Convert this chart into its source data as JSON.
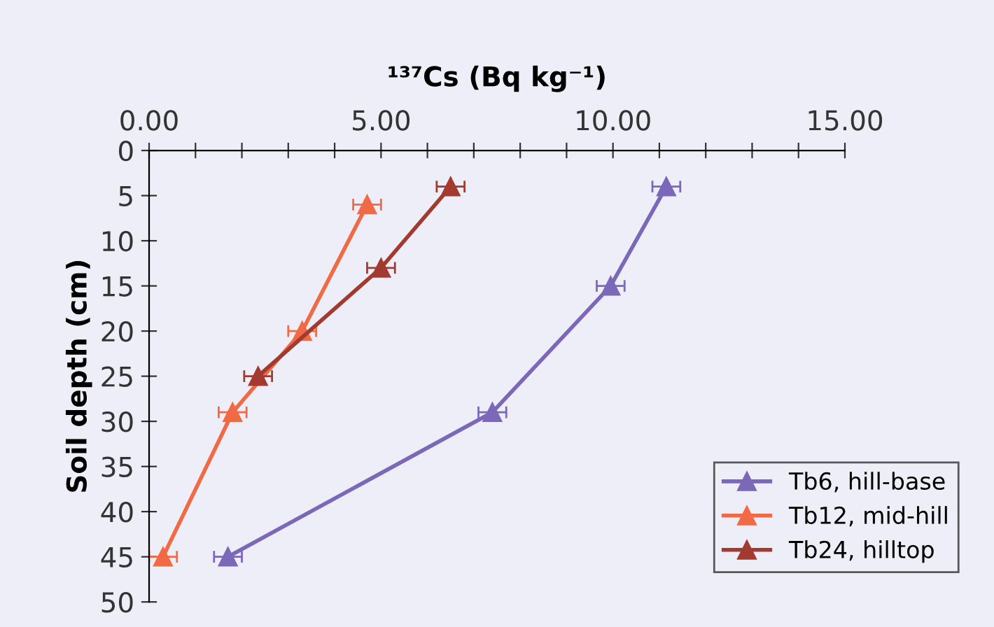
{
  "chart_data": {
    "type": "line",
    "xlabel": "¹³⁷Cs (Bq kg⁻¹)",
    "ylabel": "Soil depth (cm)",
    "xlim": [
      0,
      15
    ],
    "xticks": [
      {
        "value": 0,
        "label": "0.00"
      },
      {
        "value": 1,
        "label": null
      },
      {
        "value": 2,
        "label": null
      },
      {
        "value": 3,
        "label": null
      },
      {
        "value": 4,
        "label": null
      },
      {
        "value": 5,
        "label": "5.00"
      },
      {
        "value": 6,
        "label": null
      },
      {
        "value": 7,
        "label": null
      },
      {
        "value": 8,
        "label": null
      },
      {
        "value": 9,
        "label": null
      },
      {
        "value": 10,
        "label": "10.00"
      },
      {
        "value": 11,
        "label": null
      },
      {
        "value": 12,
        "label": null
      },
      {
        "value": 13,
        "label": null
      },
      {
        "value": 14,
        "label": null
      },
      {
        "value": 15,
        "label": "15.00"
      }
    ],
    "ylim": [
      50,
      0
    ],
    "yticks": [
      0,
      5,
      10,
      15,
      20,
      25,
      30,
      35,
      40,
      45,
      50
    ],
    "marker": "triangle",
    "line_style": "solid",
    "grid": false,
    "legend": "bottom right",
    "series": [
      {
        "name": "Tb6, hill-base",
        "color": "#7b68b8",
        "x": [
          11.15,
          9.95,
          7.4,
          1.7
        ],
        "values": [
          4,
          15,
          29,
          45
        ],
        "xerrors": [
          0.3,
          0.3,
          0.3,
          0.3
        ]
      },
      {
        "name": "Tb12, mid-hill",
        "color": "#f06a45",
        "x": [
          4.7,
          3.3,
          1.8,
          0.3
        ],
        "values": [
          6,
          20,
          29,
          45
        ],
        "xerrors": [
          0.3,
          0.3,
          0.3,
          0.3
        ]
      },
      {
        "name": "Tb24, hilltop",
        "color": "#a33a30",
        "x": [
          6.5,
          5.0,
          2.35
        ],
        "values": [
          4,
          13,
          25
        ],
        "xerrors": [
          0.3,
          0.3,
          0.3
        ]
      }
    ]
  }
}
